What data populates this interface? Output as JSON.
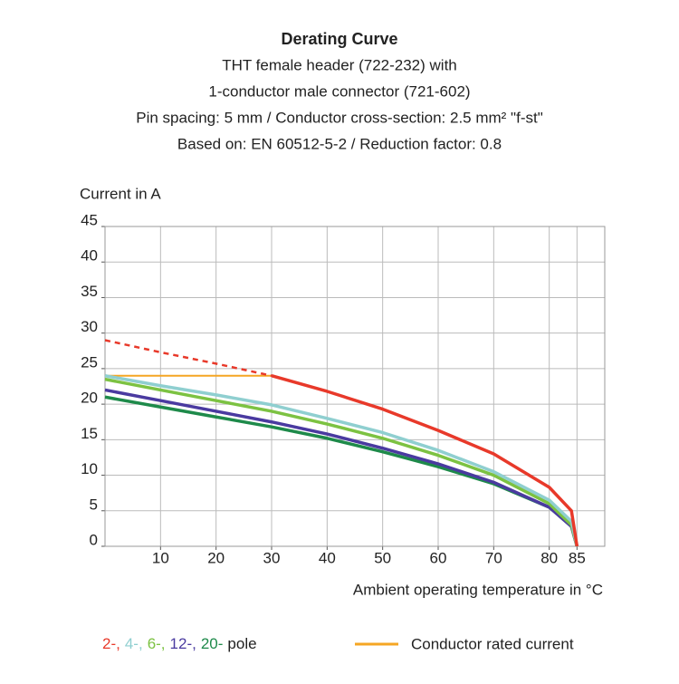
{
  "chart_data": {
    "type": "line",
    "title": "Derating Curve",
    "subtitle": [
      "THT female header  (722-232) with",
      "1-conductor male connector (721-602)",
      "Pin spacing: 5 mm / Conductor cross-section: 2.5 mm² \"f-st\"",
      "Based on: EN 60512-5-2 / Reduction factor: 0.8"
    ],
    "ylabel": "Current in A",
    "xlabel": "Ambient operating temperature in °C",
    "xlim": [
      0,
      90
    ],
    "xticks": [
      10,
      20,
      30,
      40,
      50,
      60,
      70,
      80,
      85
    ],
    "ylim": [
      0,
      45
    ],
    "yticks": [
      0,
      5,
      10,
      15,
      20,
      25,
      30,
      35,
      40,
      45
    ],
    "grid": true,
    "x": [
      0,
      10,
      20,
      30,
      40,
      50,
      60,
      70,
      80,
      84,
      85
    ],
    "series": [
      {
        "name": "2-,",
        "color": "#e8392a",
        "values": [
          null,
          null,
          null,
          24,
          21.8,
          19.3,
          16.3,
          13,
          8.3,
          5,
          0
        ],
        "dashed_values": [
          29,
          27.3,
          25.7,
          24,
          null,
          null,
          null,
          null,
          null,
          null,
          null
        ]
      },
      {
        "name": "4-,",
        "color": "#8fcfd0",
        "values": [
          24,
          22.6,
          21.3,
          19.9,
          18,
          16,
          13.5,
          10.5,
          6.5,
          3.5,
          0
        ]
      },
      {
        "name": "6-,",
        "color": "#7cc242",
        "values": [
          23.5,
          22,
          20.5,
          19,
          17.2,
          15.2,
          12.8,
          10,
          6,
          3,
          0
        ]
      },
      {
        "name": "12-,",
        "color": "#4a3aa0",
        "values": [
          22,
          20.5,
          19,
          17.5,
          15.8,
          13.8,
          11.6,
          9,
          5.5,
          2.8,
          0
        ]
      },
      {
        "name": "20-",
        "color": "#1e8a4a",
        "values": [
          21,
          19.6,
          18.2,
          16.8,
          15.2,
          13.3,
          11.2,
          8.8,
          5.5,
          2.8,
          0
        ]
      }
    ],
    "legend_suffix": "pole",
    "rated_current": {
      "name": "Conductor rated current",
      "color": "#f5a623",
      "values": [
        24,
        24,
        24,
        24,
        null,
        null,
        null,
        null,
        null,
        null,
        null
      ]
    }
  }
}
